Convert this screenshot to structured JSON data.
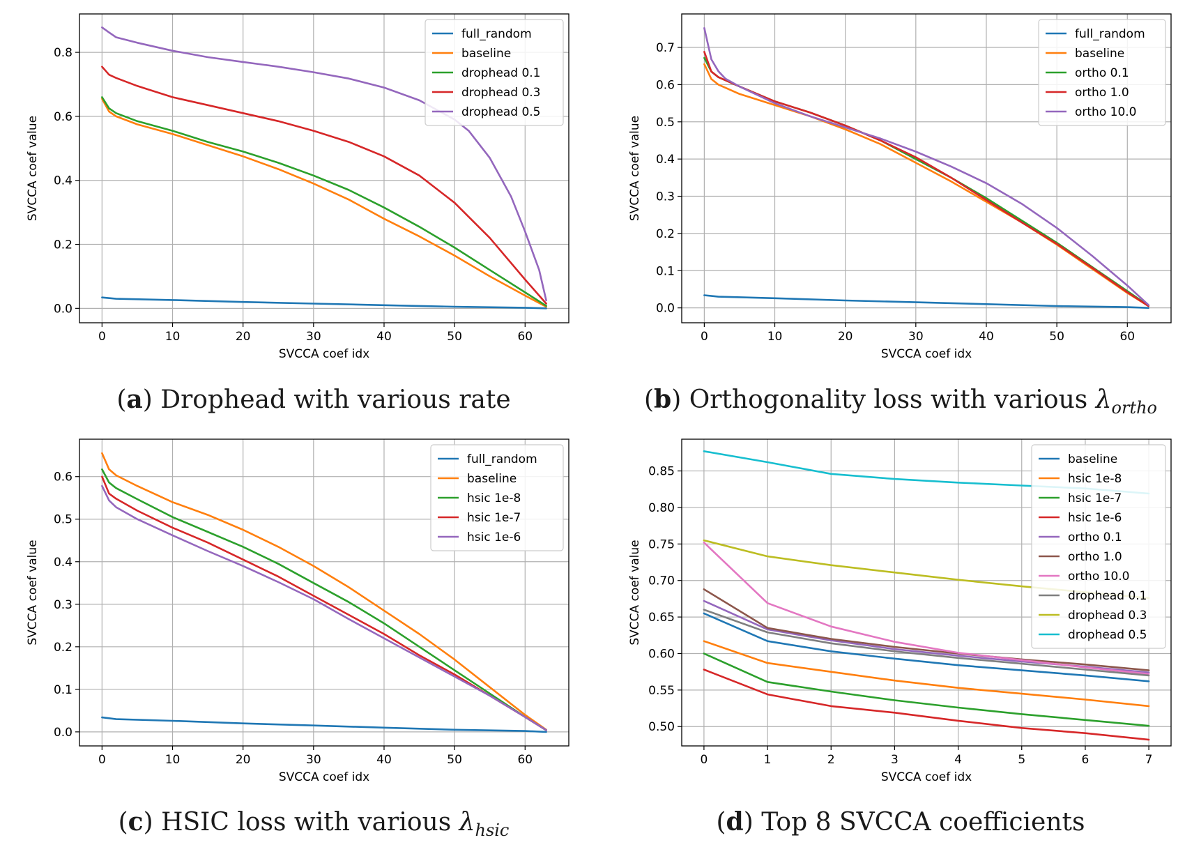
{
  "colors": {
    "full_random": "#1f77b4",
    "baseline": "#ff7f0e",
    "green": "#2ca02c",
    "red": "#d62728",
    "purple": "#9467bd",
    "brown": "#8c564b",
    "pink": "#e377c2",
    "gray": "#7f7f7f",
    "olive": "#bcbd22",
    "cyan": "#17becf",
    "d_baseline": "#1f77b4",
    "d_hsic8": "#ff7f0e"
  },
  "captions": [
    {
      "letter": "a",
      "text": "Drophead with various rate",
      "symbol": "",
      "subscript": ""
    },
    {
      "letter": "b",
      "text": "Orthogonality loss with various ",
      "symbol": "λ",
      "subscript": "ortho"
    },
    {
      "letter": "c",
      "text": "HSIC loss with various ",
      "symbol": "λ",
      "subscript": "hsic"
    },
    {
      "letter": "d",
      "text": "Top 8 SVCCA coefficients",
      "symbol": "",
      "subscript": ""
    }
  ],
  "chart_data": [
    {
      "id": "a",
      "type": "line",
      "xlabel": "SVCCA coef idx",
      "ylabel": "SVCCA coef value",
      "xlim": [
        -3.2,
        66.2
      ],
      "ylim": [
        -0.045,
        0.92
      ],
      "xticks": [
        0,
        10,
        20,
        30,
        40,
        50,
        60
      ],
      "yticks": [
        0.0,
        0.2,
        0.4,
        0.6,
        0.8
      ],
      "ytick_labels": [
        "0.0",
        "0.2",
        "0.4",
        "0.6",
        "0.8"
      ],
      "grid": true,
      "legend_position": "upper-right",
      "series": [
        {
          "name": "full_random",
          "color_key": "full_random",
          "x": [
            0,
            2,
            10,
            20,
            30,
            40,
            50,
            60,
            63
          ],
          "y": [
            0.034,
            0.03,
            0.026,
            0.02,
            0.015,
            0.01,
            0.005,
            0.002,
            0.0
          ]
        },
        {
          "name": "baseline",
          "color_key": "baseline",
          "x": [
            0,
            1,
            2,
            5,
            10,
            15,
            20,
            25,
            30,
            35,
            40,
            45,
            50,
            55,
            60,
            63
          ],
          "y": [
            0.655,
            0.615,
            0.6,
            0.575,
            0.545,
            0.51,
            0.475,
            0.435,
            0.39,
            0.34,
            0.28,
            0.225,
            0.165,
            0.1,
            0.04,
            0.005
          ]
        },
        {
          "name": "drophead 0.1",
          "color_key": "green",
          "x": [
            0,
            1,
            2,
            5,
            10,
            15,
            20,
            25,
            30,
            35,
            40,
            45,
            50,
            55,
            60,
            63
          ],
          "y": [
            0.66,
            0.625,
            0.61,
            0.585,
            0.555,
            0.52,
            0.49,
            0.455,
            0.415,
            0.37,
            0.315,
            0.255,
            0.19,
            0.12,
            0.05,
            0.008
          ]
        },
        {
          "name": "drophead 0.3",
          "color_key": "red",
          "x": [
            0,
            1,
            2,
            5,
            10,
            15,
            20,
            25,
            30,
            35,
            40,
            45,
            50,
            55,
            60,
            63
          ],
          "y": [
            0.755,
            0.73,
            0.72,
            0.695,
            0.66,
            0.635,
            0.61,
            0.585,
            0.555,
            0.52,
            0.475,
            0.415,
            0.33,
            0.22,
            0.09,
            0.015
          ]
        },
        {
          "name": "drophead 0.5",
          "color_key": "purple",
          "x": [
            0,
            1,
            2,
            5,
            10,
            15,
            20,
            25,
            30,
            35,
            40,
            45,
            50,
            52,
            55,
            58,
            60,
            62,
            63
          ],
          "y": [
            0.878,
            0.862,
            0.847,
            0.83,
            0.805,
            0.785,
            0.77,
            0.755,
            0.738,
            0.718,
            0.69,
            0.65,
            0.59,
            0.555,
            0.47,
            0.35,
            0.24,
            0.12,
            0.025
          ]
        }
      ]
    },
    {
      "id": "b",
      "type": "line",
      "xlabel": "SVCCA coef idx",
      "ylabel": "SVCCA coef value",
      "xlim": [
        -3.2,
        66.2
      ],
      "ylim": [
        -0.04,
        0.79
      ],
      "xticks": [
        0,
        10,
        20,
        30,
        40,
        50,
        60
      ],
      "yticks": [
        0.0,
        0.1,
        0.2,
        0.3,
        0.4,
        0.5,
        0.6,
        0.7
      ],
      "ytick_labels": [
        "0.0",
        "0.1",
        "0.2",
        "0.3",
        "0.4",
        "0.5",
        "0.6",
        "0.7"
      ],
      "grid": true,
      "legend_position": "upper-right",
      "series": [
        {
          "name": "full_random",
          "color_key": "full_random",
          "x": [
            0,
            2,
            10,
            20,
            30,
            40,
            50,
            60,
            63
          ],
          "y": [
            0.034,
            0.03,
            0.026,
            0.02,
            0.015,
            0.01,
            0.005,
            0.002,
            0.0
          ]
        },
        {
          "name": "baseline",
          "color_key": "baseline",
          "x": [
            0,
            1,
            2,
            5,
            10,
            15,
            20,
            25,
            30,
            35,
            40,
            45,
            50,
            55,
            60,
            63
          ],
          "y": [
            0.655,
            0.615,
            0.6,
            0.575,
            0.545,
            0.515,
            0.48,
            0.44,
            0.39,
            0.34,
            0.285,
            0.23,
            0.17,
            0.105,
            0.04,
            0.005
          ]
        },
        {
          "name": "ortho 0.1",
          "color_key": "green",
          "x": [
            0,
            1,
            2,
            5,
            10,
            15,
            20,
            25,
            30,
            35,
            40,
            45,
            50,
            55,
            60,
            63
          ],
          "y": [
            0.672,
            0.635,
            0.62,
            0.595,
            0.555,
            0.525,
            0.49,
            0.45,
            0.4,
            0.35,
            0.295,
            0.235,
            0.175,
            0.11,
            0.045,
            0.006
          ]
        },
        {
          "name": "ortho 1.0",
          "color_key": "red",
          "x": [
            0,
            1,
            2,
            5,
            10,
            15,
            20,
            25,
            30,
            35,
            40,
            45,
            50,
            55,
            60,
            63
          ],
          "y": [
            0.688,
            0.635,
            0.62,
            0.595,
            0.555,
            0.525,
            0.49,
            0.45,
            0.405,
            0.35,
            0.29,
            0.23,
            0.172,
            0.108,
            0.042,
            0.005
          ]
        },
        {
          "name": "ortho 10.0",
          "color_key": "purple",
          "x": [
            0,
            1,
            2,
            3,
            5,
            10,
            15,
            20,
            25,
            30,
            35,
            40,
            45,
            50,
            55,
            60,
            63
          ],
          "y": [
            0.752,
            0.668,
            0.636,
            0.616,
            0.595,
            0.55,
            0.515,
            0.485,
            0.455,
            0.42,
            0.38,
            0.335,
            0.28,
            0.215,
            0.14,
            0.06,
            0.008
          ]
        }
      ]
    },
    {
      "id": "c",
      "type": "line",
      "xlabel": "SVCCA coef idx",
      "ylabel": "SVCCA coef value",
      "xlim": [
        -3.2,
        66.2
      ],
      "ylim": [
        -0.033,
        0.688
      ],
      "xticks": [
        0,
        10,
        20,
        30,
        40,
        50,
        60
      ],
      "yticks": [
        0.0,
        0.1,
        0.2,
        0.3,
        0.4,
        0.5,
        0.6
      ],
      "ytick_labels": [
        "0.0",
        "0.1",
        "0.2",
        "0.3",
        "0.4",
        "0.5",
        "0.6"
      ],
      "grid": true,
      "legend_position": "upper-right",
      "series": [
        {
          "name": "full_random",
          "color_key": "full_random",
          "x": [
            0,
            2,
            10,
            20,
            30,
            40,
            50,
            60,
            63
          ],
          "y": [
            0.034,
            0.03,
            0.026,
            0.02,
            0.015,
            0.01,
            0.005,
            0.002,
            0.0
          ]
        },
        {
          "name": "baseline",
          "color_key": "baseline",
          "x": [
            0,
            1,
            2,
            5,
            10,
            15,
            20,
            25,
            30,
            35,
            40,
            45,
            50,
            55,
            60,
            63
          ],
          "y": [
            0.655,
            0.617,
            0.603,
            0.578,
            0.54,
            0.51,
            0.475,
            0.435,
            0.39,
            0.34,
            0.285,
            0.23,
            0.17,
            0.105,
            0.04,
            0.005
          ]
        },
        {
          "name": "hsic 1e-8",
          "color_key": "green",
          "x": [
            0,
            1,
            2,
            5,
            10,
            15,
            20,
            25,
            30,
            35,
            40,
            45,
            50,
            55,
            60,
            63
          ],
          "y": [
            0.617,
            0.586,
            0.573,
            0.547,
            0.505,
            0.47,
            0.435,
            0.395,
            0.35,
            0.305,
            0.255,
            0.2,
            0.145,
            0.09,
            0.035,
            0.004
          ]
        },
        {
          "name": "hsic 1e-7",
          "color_key": "red",
          "x": [
            0,
            1,
            2,
            5,
            10,
            15,
            20,
            25,
            30,
            35,
            40,
            45,
            50,
            55,
            60,
            63
          ],
          "y": [
            0.6,
            0.56,
            0.548,
            0.52,
            0.48,
            0.445,
            0.405,
            0.365,
            0.32,
            0.275,
            0.23,
            0.18,
            0.135,
            0.085,
            0.035,
            0.004
          ]
        },
        {
          "name": "hsic 1e-6",
          "color_key": "purple",
          "x": [
            0,
            1,
            2,
            5,
            10,
            15,
            20,
            25,
            30,
            35,
            40,
            45,
            50,
            55,
            60,
            63
          ],
          "y": [
            0.578,
            0.544,
            0.528,
            0.5,
            0.462,
            0.425,
            0.39,
            0.352,
            0.312,
            0.265,
            0.22,
            0.175,
            0.13,
            0.085,
            0.035,
            0.004
          ]
        }
      ]
    },
    {
      "id": "d",
      "type": "line",
      "xlabel": "SVCCA coef idx",
      "ylabel": "SVCCA coef value",
      "xlim": [
        -0.35,
        7.35
      ],
      "ylim": [
        0.4735,
        0.8935
      ],
      "xticks": [
        0,
        1,
        2,
        3,
        4,
        5,
        6,
        7
      ],
      "yticks": [
        0.5,
        0.55,
        0.6,
        0.65,
        0.7,
        0.75,
        0.8,
        0.85
      ],
      "ytick_labels": [
        "0.50",
        "0.55",
        "0.60",
        "0.65",
        "0.70",
        "0.75",
        "0.80",
        "0.85"
      ],
      "grid": true,
      "legend_position": "upper-right",
      "series": [
        {
          "name": "baseline",
          "color_key": "d_baseline",
          "x": [
            0,
            1,
            2,
            3,
            4,
            5,
            6,
            7
          ],
          "y": [
            0.655,
            0.617,
            0.603,
            0.593,
            0.584,
            0.577,
            0.57,
            0.562
          ]
        },
        {
          "name": "hsic 1e-8",
          "color_key": "d_hsic8",
          "x": [
            0,
            1,
            2,
            3,
            4,
            5,
            6,
            7
          ],
          "y": [
            0.617,
            0.587,
            0.575,
            0.563,
            0.553,
            0.545,
            0.537,
            0.528
          ]
        },
        {
          "name": "hsic 1e-7",
          "color_key": "green",
          "x": [
            0,
            1,
            2,
            3,
            4,
            5,
            6,
            7
          ],
          "y": [
            0.6,
            0.561,
            0.548,
            0.536,
            0.526,
            0.517,
            0.509,
            0.501
          ]
        },
        {
          "name": "hsic 1e-6",
          "color_key": "red",
          "x": [
            0,
            1,
            2,
            3,
            4,
            5,
            6,
            7
          ],
          "y": [
            0.578,
            0.544,
            0.528,
            0.519,
            0.508,
            0.498,
            0.491,
            0.482
          ]
        },
        {
          "name": "ortho 0.1",
          "color_key": "purple",
          "x": [
            0,
            1,
            2,
            3,
            4,
            5,
            6,
            7
          ],
          "y": [
            0.672,
            0.633,
            0.618,
            0.606,
            0.597,
            0.589,
            0.582,
            0.574
          ]
        },
        {
          "name": "ortho 1.0",
          "color_key": "brown",
          "x": [
            0,
            1,
            2,
            3,
            4,
            5,
            6,
            7
          ],
          "y": [
            0.688,
            0.635,
            0.62,
            0.609,
            0.6,
            0.592,
            0.585,
            0.577
          ]
        },
        {
          "name": "ortho 10.0",
          "color_key": "pink",
          "x": [
            0,
            1,
            2,
            3,
            4,
            5,
            6,
            7
          ],
          "y": [
            0.752,
            0.669,
            0.637,
            0.616,
            0.601,
            0.591,
            0.581,
            0.572
          ]
        },
        {
          "name": "drophead 0.1",
          "color_key": "gray",
          "x": [
            0,
            1,
            2,
            3,
            4,
            5,
            6,
            7
          ],
          "y": [
            0.66,
            0.629,
            0.614,
            0.603,
            0.594,
            0.586,
            0.578,
            0.57
          ]
        },
        {
          "name": "drophead 0.3",
          "color_key": "olive",
          "x": [
            0,
            1,
            2,
            3,
            4,
            5,
            6,
            7
          ],
          "y": [
            0.755,
            0.733,
            0.721,
            0.711,
            0.701,
            0.692,
            0.684,
            0.676
          ]
        },
        {
          "name": "drophead 0.5",
          "color_key": "cyan",
          "x": [
            0,
            1,
            2,
            3,
            4,
            5,
            6,
            7
          ],
          "y": [
            0.877,
            0.862,
            0.846,
            0.839,
            0.834,
            0.83,
            0.826,
            0.819
          ]
        }
      ]
    }
  ]
}
